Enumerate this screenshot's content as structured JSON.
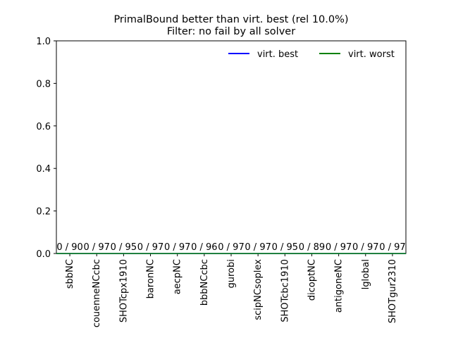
{
  "chart_data": {
    "type": "line",
    "title": "PrimalBound better than virt. best (rel 10.0%)",
    "subtitle": "Filter: no fail by all solver",
    "xlabel": "",
    "ylabel": "",
    "ylim": [
      0.0,
      1.0
    ],
    "yticks": [
      "0.0",
      "0.2",
      "0.4",
      "0.6",
      "0.8",
      "1.0"
    ],
    "grid": false,
    "legend_position": "top-right",
    "categories": [
      "sbbNC",
      "couenneNCcbc",
      "SHOTcpx1910",
      "baronNC",
      "aecpNC",
      "bbbNCcbc",
      "gurobi",
      "scipNCsoplex",
      "SHOTcbc1910",
      "dicoptNC",
      "antigoneNC",
      "lglobal",
      "SHOTgur2310"
    ],
    "bar_labels": [
      "0 / 90",
      "0 / 97",
      "0 / 95",
      "0 / 97",
      "0 / 97",
      "0 / 96",
      "0 / 97",
      "0 / 97",
      "0 / 95",
      "0 / 89",
      "0 / 97",
      "0 / 97",
      "0 / 97"
    ],
    "values": [
      0,
      0,
      0,
      0,
      0,
      0,
      0,
      0,
      0,
      0,
      0,
      0,
      0
    ],
    "series": [
      {
        "name": "virt. best",
        "color": "#0000ff",
        "values": [
          0,
          0,
          0,
          0,
          0,
          0,
          0,
          0,
          0,
          0,
          0,
          0,
          0
        ]
      },
      {
        "name": "virt. worst",
        "color": "#008000",
        "values": [
          0,
          0,
          0,
          0,
          0,
          0,
          0,
          0,
          0,
          0,
          0,
          0,
          0
        ]
      }
    ]
  }
}
